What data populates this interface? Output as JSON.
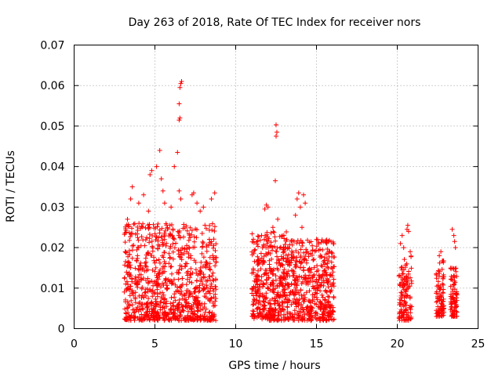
{
  "chart_data": {
    "type": "scatter",
    "title": "Day 263 of 2018, Rate Of TEC Index for receiver nors",
    "xlabel": "GPS time / hours",
    "ylabel": "ROTI / TECUs",
    "xlim": [
      0,
      25
    ],
    "ylim": [
      0,
      0.07
    ],
    "xticks": [
      "0",
      "5",
      "10",
      "15",
      "20",
      "25"
    ],
    "yticks": [
      "0",
      "0.01",
      "0.02",
      "0.03",
      "0.04",
      "0.05",
      "0.06",
      "0.07"
    ],
    "grid": true,
    "marker": "+",
    "color": "#ff0000",
    "clusters": [
      {
        "x": [
          3.1,
          8.8
        ],
        "y": [
          0.002,
          0.026
        ],
        "n": 900
      },
      {
        "x": [
          11.0,
          13.2
        ],
        "y": [
          0.002,
          0.024
        ],
        "n": 420
      },
      {
        "x": [
          13.2,
          16.1
        ],
        "y": [
          0.002,
          0.022
        ],
        "n": 480
      },
      {
        "x": [
          20.1,
          20.9
        ],
        "y": [
          0.002,
          0.018
        ],
        "n": 120
      },
      {
        "x": [
          22.4,
          22.9
        ],
        "y": [
          0.003,
          0.017
        ],
        "n": 90
      },
      {
        "x": [
          23.3,
          23.7
        ],
        "y": [
          0.003,
          0.015
        ],
        "n": 80
      }
    ],
    "points": [
      [
        3.3,
        0.027
      ],
      [
        3.5,
        0.032
      ],
      [
        3.6,
        0.035
      ],
      [
        4.0,
        0.031
      ],
      [
        4.3,
        0.033
      ],
      [
        4.6,
        0.029
      ],
      [
        4.7,
        0.038
      ],
      [
        4.8,
        0.039
      ],
      [
        5.1,
        0.04
      ],
      [
        5.3,
        0.044
      ],
      [
        5.4,
        0.037
      ],
      [
        5.5,
        0.034
      ],
      [
        5.6,
        0.031
      ],
      [
        6.0,
        0.03
      ],
      [
        6.2,
        0.04
      ],
      [
        6.4,
        0.0435
      ],
      [
        6.5,
        0.0515
      ],
      [
        6.55,
        0.052
      ],
      [
        6.5,
        0.0555
      ],
      [
        6.55,
        0.0595
      ],
      [
        6.6,
        0.0605
      ],
      [
        6.65,
        0.061
      ],
      [
        6.5,
        0.034
      ],
      [
        6.6,
        0.032
      ],
      [
        7.3,
        0.033
      ],
      [
        7.4,
        0.0335
      ],
      [
        7.6,
        0.031
      ],
      [
        7.8,
        0.029
      ],
      [
        8.0,
        0.03
      ],
      [
        8.5,
        0.032
      ],
      [
        8.7,
        0.0335
      ],
      [
        11.6,
        0.023
      ],
      [
        11.8,
        0.0295
      ],
      [
        11.9,
        0.0305
      ],
      [
        12.0,
        0.03
      ],
      [
        12.3,
        0.025
      ],
      [
        12.45,
        0.0365
      ],
      [
        12.5,
        0.0475
      ],
      [
        12.55,
        0.0485
      ],
      [
        12.5,
        0.0503
      ],
      [
        12.6,
        0.027
      ],
      [
        13.7,
        0.028
      ],
      [
        13.8,
        0.032
      ],
      [
        13.9,
        0.0335
      ],
      [
        14.0,
        0.03
      ],
      [
        14.2,
        0.033
      ],
      [
        14.3,
        0.031
      ],
      [
        14.1,
        0.025
      ],
      [
        15.0,
        0.022
      ],
      [
        20.2,
        0.021
      ],
      [
        20.3,
        0.023
      ],
      [
        20.6,
        0.0245
      ],
      [
        20.65,
        0.0255
      ],
      [
        20.7,
        0.024
      ],
      [
        20.8,
        0.019
      ],
      [
        20.4,
        0.02
      ],
      [
        22.6,
        0.018
      ],
      [
        22.7,
        0.019
      ],
      [
        23.4,
        0.0245
      ],
      [
        23.5,
        0.023
      ],
      [
        23.55,
        0.0215
      ],
      [
        23.6,
        0.02
      ]
    ]
  }
}
